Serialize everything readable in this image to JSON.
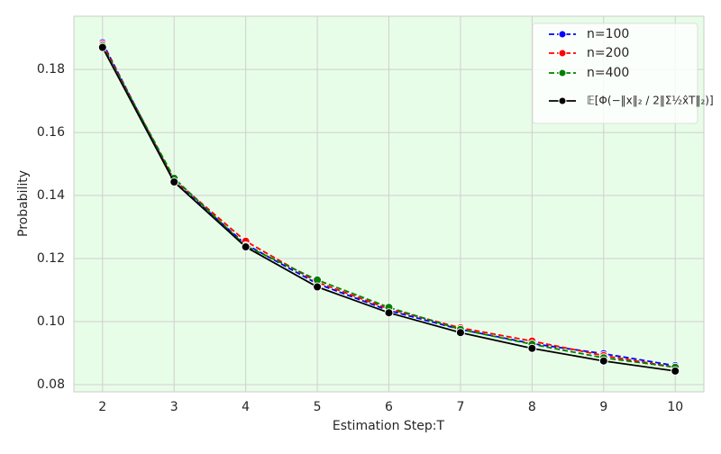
{
  "chart_data": {
    "type": "line",
    "x": [
      2,
      3,
      4,
      5,
      6,
      7,
      8,
      9,
      10
    ],
    "xlabel": "Estimation Step:T",
    "ylabel": "Probability",
    "series": [
      {
        "name": "n=100",
        "color": "#0000ff",
        "dashed": true,
        "values": [
          0.1885,
          0.1445,
          0.1245,
          0.112,
          0.1035,
          0.0975,
          0.093,
          0.0898,
          0.086
        ]
      },
      {
        "name": "n=200",
        "color": "#ff0000",
        "dashed": true,
        "values": [
          0.188,
          0.145,
          0.1255,
          0.1125,
          0.104,
          0.098,
          0.0938,
          0.0892,
          0.0855
        ]
      },
      {
        "name": "n=400",
        "color": "#008000",
        "dashed": true,
        "values": [
          0.1875,
          0.1455,
          0.124,
          0.1132,
          0.1045,
          0.0975,
          0.0928,
          0.0885,
          0.0855
        ]
      },
      {
        "name": "𝔼[Φ(−‖x‖₂ / 2‖Σ½x̂T‖₂)]",
        "color": "#000000",
        "dashed": false,
        "values": [
          0.187,
          0.1443,
          0.1237,
          0.111,
          0.1028,
          0.0965,
          0.0915,
          0.0875,
          0.0843
        ]
      }
    ],
    "xlim": [
      1.6,
      10.4
    ],
    "xticks": [
      2,
      3,
      4,
      5,
      6,
      7,
      8,
      9,
      10
    ],
    "ylim": [
      0.0777,
      0.1969
    ],
    "yticks": [
      {
        "value": 0.08,
        "label": "0.08"
      },
      {
        "value": 0.1,
        "label": "0.10"
      },
      {
        "value": 0.12,
        "label": "0.12"
      },
      {
        "value": 0.14,
        "label": "0.14"
      },
      {
        "value": 0.16,
        "label": "0.16"
      },
      {
        "value": 0.18,
        "label": "0.18"
      }
    ],
    "grid": true,
    "legend": "upper right"
  }
}
